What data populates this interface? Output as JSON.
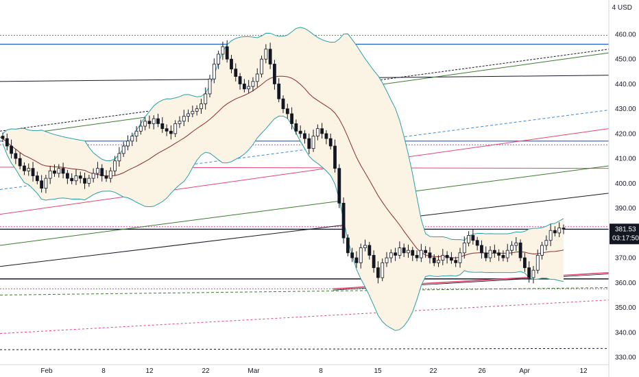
{
  "header": {
    "menu_number": "4",
    "currency": "USD"
  },
  "price_tag": {
    "price": "381.53",
    "countdown": "03:17:50",
    "color": "#131722"
  },
  "colors": {
    "up_candle": "#ffffff",
    "down_candle": "#131722",
    "bb_line": "#26a0a8",
    "bb_fill": "#fbf3e4",
    "ma_line": "#8b2a2a",
    "blue_line": "#1e5bc6",
    "black_line": "#131722",
    "green_line": "#3a7a2a",
    "pink_line": "#e8436f",
    "dotted_pink": "#e040a0",
    "dashed_blue": "#3c8ad8"
  },
  "chart_data": {
    "type": "candlestick",
    "ylim": [
      328,
      465
    ],
    "y_ticks": [
      "460.00",
      "450.00",
      "440.00",
      "430.00",
      "420.00",
      "410.00",
      "400.00",
      "390.00",
      "380.00",
      "370.00",
      "360.00",
      "350.00",
      "340.00",
      "330.00"
    ],
    "x_ticks": [
      "Feb",
      "8",
      "12",
      "22",
      "Mar",
      "8",
      "15",
      "22",
      "26",
      "Apr",
      "12"
    ],
    "last_price": 381.53,
    "bollinger_bands": "shown",
    "moving_average": "shown",
    "ohlc_close": [
      418,
      415,
      412,
      410,
      407,
      405,
      406,
      403,
      401,
      398,
      402,
      405,
      404,
      406,
      404,
      402,
      401,
      403,
      402,
      400,
      402,
      404,
      406,
      403,
      402,
      405,
      409,
      412,
      415,
      417,
      419,
      421,
      423,
      425,
      424,
      426,
      424,
      422,
      421,
      420,
      424,
      425,
      427,
      428,
      429,
      430,
      432,
      436,
      442,
      448,
      452,
      455,
      450,
      446,
      443,
      440,
      438,
      439,
      441,
      444,
      450,
      454,
      448,
      440,
      434,
      430,
      428,
      424,
      421,
      420,
      418,
      414,
      419,
      422,
      420,
      418,
      415,
      406,
      392,
      378,
      372,
      370,
      368,
      374,
      375,
      371,
      366,
      362,
      368,
      370,
      372,
      371,
      374,
      372,
      373,
      371,
      370,
      373,
      372,
      370,
      368,
      369,
      371,
      370,
      369,
      368,
      372,
      376,
      379,
      377,
      375,
      372,
      370,
      373,
      372,
      371,
      370,
      373,
      375,
      376,
      370,
      366,
      362,
      365,
      371,
      375,
      377,
      381,
      380,
      382,
      381.53
    ]
  }
}
